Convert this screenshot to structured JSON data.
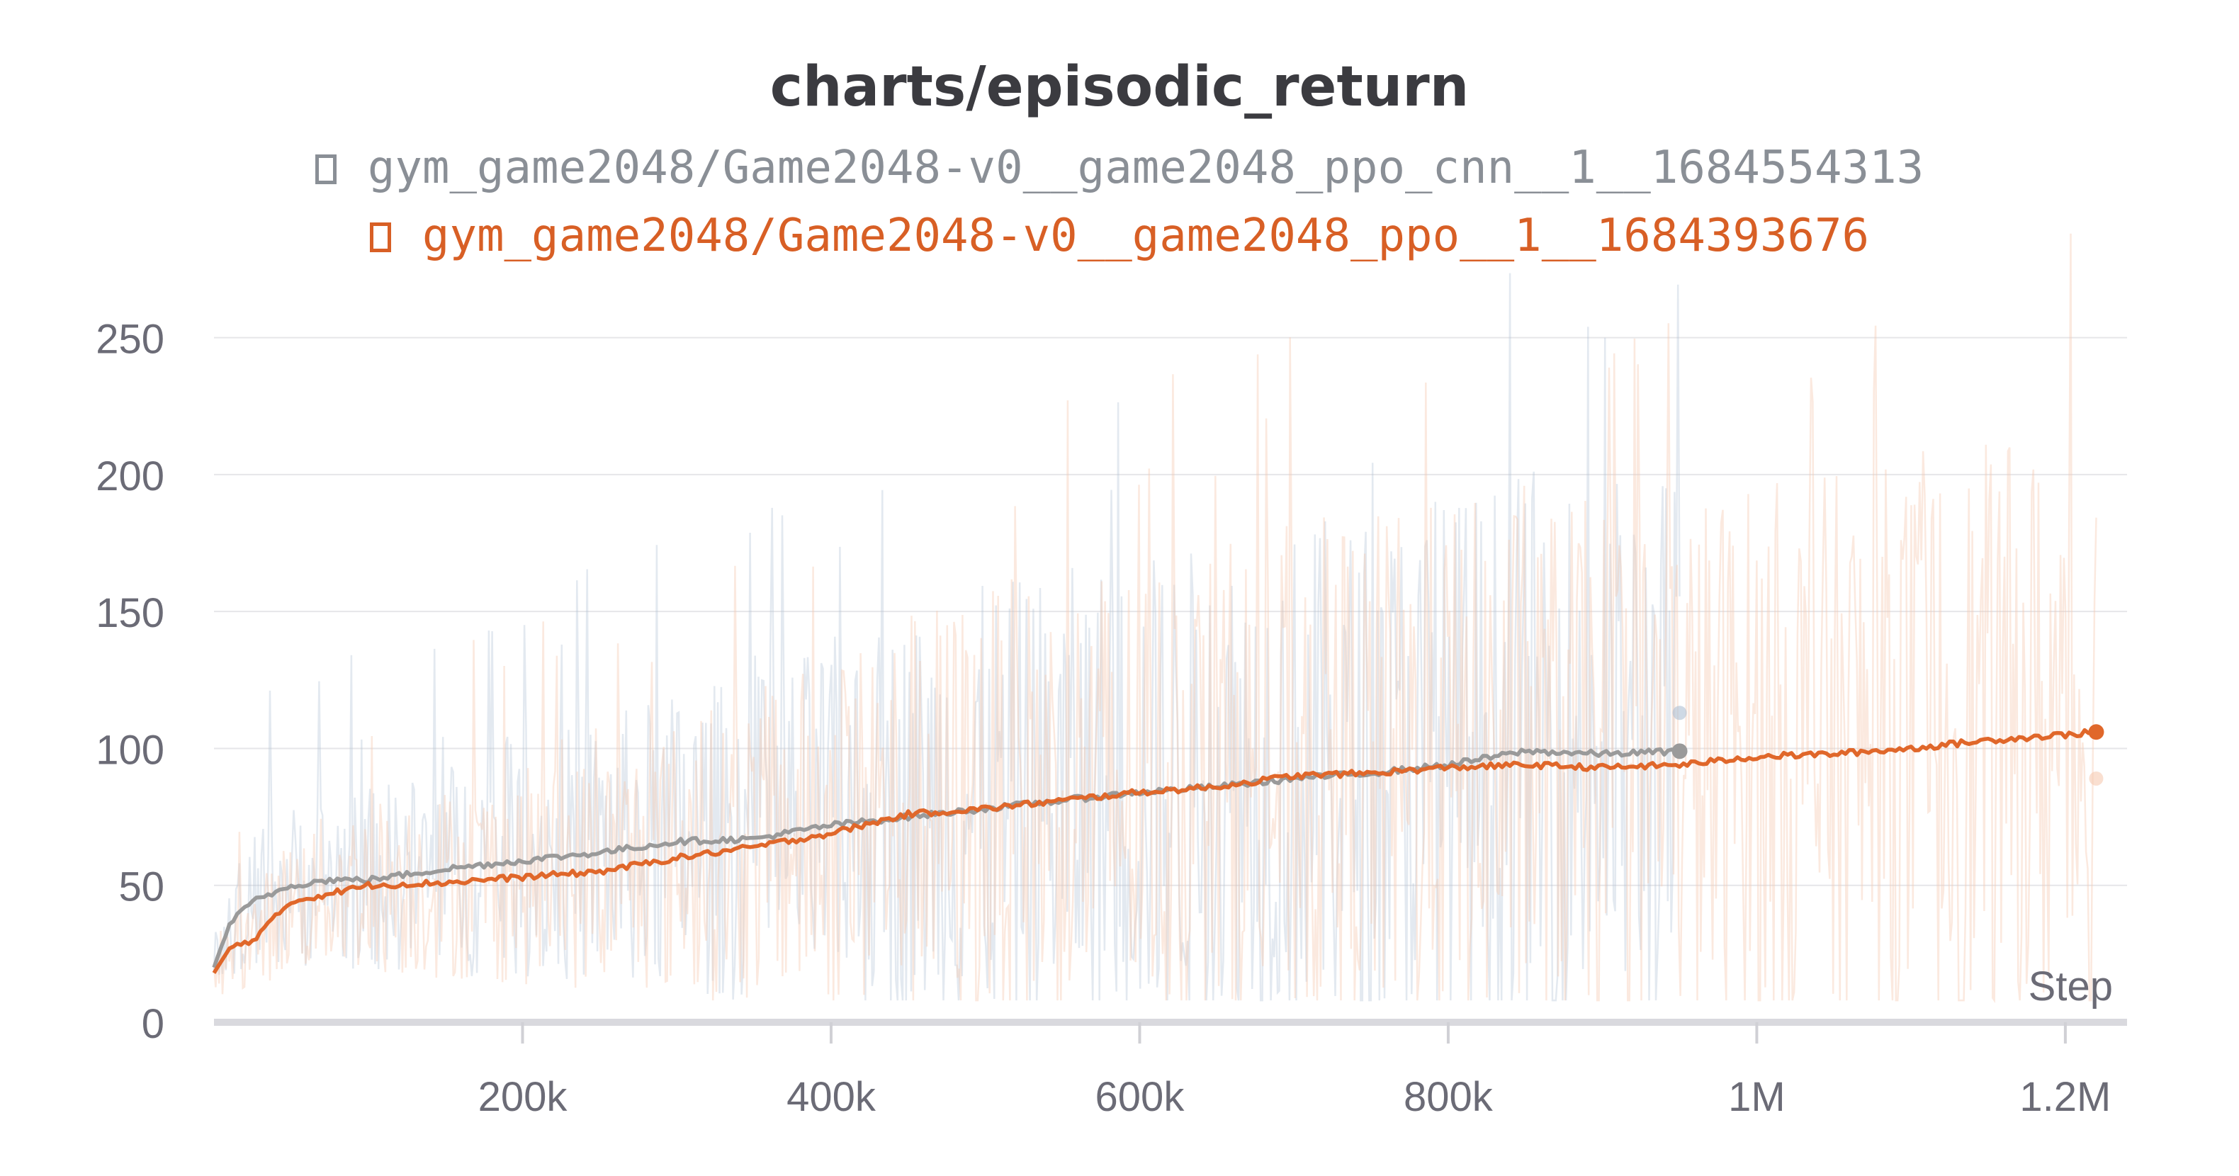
{
  "chart_data": {
    "type": "line",
    "title": "charts/episodic_return",
    "xlabel": "Step",
    "ylabel": "",
    "xlim": [
      0,
      1220000
    ],
    "ylim": [
      0,
      275
    ],
    "x_ticks": [
      {
        "value": 200000,
        "label": "200k"
      },
      {
        "value": 400000,
        "label": "400k"
      },
      {
        "value": 600000,
        "label": "600k"
      },
      {
        "value": 800000,
        "label": "800k"
      },
      {
        "value": 1000000,
        "label": "1M"
      },
      {
        "value": 1200000,
        "label": "1.2M"
      }
    ],
    "y_ticks": [
      {
        "value": 0,
        "label": "0"
      },
      {
        "value": 50,
        "label": "50"
      },
      {
        "value": 100,
        "label": "100"
      },
      {
        "value": 150,
        "label": "150"
      },
      {
        "value": 200,
        "label": "200"
      },
      {
        "value": 250,
        "label": "250"
      }
    ],
    "grid": true,
    "legend_position": "top",
    "series": [
      {
        "name": "gym_game2048/Game2048-v0__game2048_ppo_cnn__1__1684554313",
        "color": "#9a9a9a",
        "raw_color": "#aebfd4",
        "last_raw_value": 113,
        "smoothed": [
          [
            0,
            20
          ],
          [
            10000,
            36
          ],
          [
            25000,
            44
          ],
          [
            50000,
            50
          ],
          [
            75000,
            52
          ],
          [
            100000,
            52
          ],
          [
            150000,
            56
          ],
          [
            200000,
            59
          ],
          [
            250000,
            62
          ],
          [
            300000,
            66
          ],
          [
            350000,
            67
          ],
          [
            400000,
            72
          ],
          [
            450000,
            75
          ],
          [
            500000,
            78
          ],
          [
            550000,
            81
          ],
          [
            600000,
            84
          ],
          [
            650000,
            86
          ],
          [
            700000,
            89
          ],
          [
            750000,
            91
          ],
          [
            800000,
            94
          ],
          [
            850000,
            99
          ],
          [
            900000,
            98
          ],
          [
            950000,
            99
          ]
        ]
      },
      {
        "name": "gym_game2048/Game2048-v0__game2048_ppo__1__1684393676",
        "color": "#e0672a",
        "raw_color": "#f6c9b0",
        "last_raw_value": 89,
        "smoothed": [
          [
            0,
            18
          ],
          [
            10000,
            27
          ],
          [
            25000,
            30
          ],
          [
            50000,
            44
          ],
          [
            75000,
            47
          ],
          [
            100000,
            50
          ],
          [
            150000,
            51
          ],
          [
            200000,
            53
          ],
          [
            250000,
            55
          ],
          [
            300000,
            60
          ],
          [
            350000,
            64
          ],
          [
            400000,
            69
          ],
          [
            450000,
            76
          ],
          [
            500000,
            78
          ],
          [
            550000,
            81
          ],
          [
            600000,
            84
          ],
          [
            650000,
            86
          ],
          [
            700000,
            90
          ],
          [
            750000,
            91
          ],
          [
            800000,
            93
          ],
          [
            850000,
            94
          ],
          [
            900000,
            93
          ],
          [
            950000,
            94
          ],
          [
            1000000,
            97
          ],
          [
            1050000,
            98
          ],
          [
            1100000,
            100
          ],
          [
            1150000,
            103
          ],
          [
            1200000,
            105
          ],
          [
            1220000,
            106
          ]
        ]
      }
    ]
  }
}
